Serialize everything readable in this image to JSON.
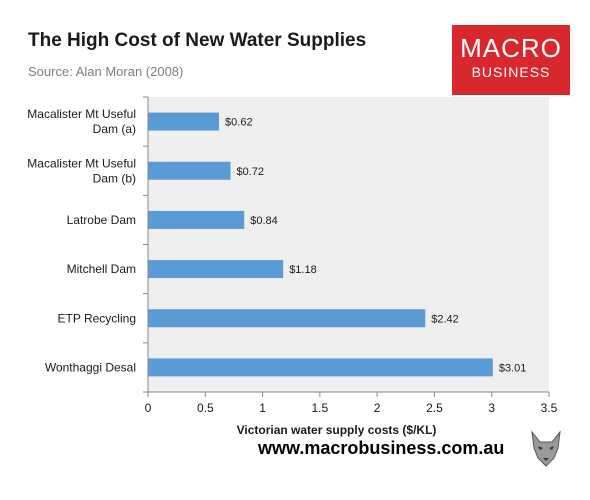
{
  "header": {
    "title": "The High Cost of New Water Supplies",
    "subtitle": "Source: Alan Moran (2008)"
  },
  "logo": {
    "line1": "MACRO",
    "line2": "BUSINESS",
    "color": "#d9272e"
  },
  "footer": {
    "url": "www.macrobusiness.com.au",
    "mascot_icon": "wolf-icon"
  },
  "chart_data": {
    "type": "bar",
    "orientation": "horizontal",
    "categories": [
      [
        "Macalister Mt Useful",
        "Dam (a)"
      ],
      [
        "Macalister Mt Useful",
        "Dam (b)"
      ],
      [
        "Latrobe Dam"
      ],
      [
        "Mitchell Dam"
      ],
      [
        "ETP Recycling"
      ],
      [
        "Wonthaggi Desal"
      ]
    ],
    "values": [
      0.62,
      0.72,
      0.84,
      1.18,
      2.42,
      3.01
    ],
    "data_labels": [
      "$0.62",
      "$0.72",
      "$0.84",
      "$1.18",
      "$2.42",
      "$3.01"
    ],
    "xlabel": "Victorian water supply costs ($/KL)",
    "xlim": [
      0,
      3.5
    ],
    "xticks": [
      0,
      0.5,
      1,
      1.5,
      2,
      2.5,
      3,
      3.5
    ],
    "xtick_labels": [
      "0",
      "0.5",
      "1",
      "1.5",
      "2",
      "2.5",
      "3",
      "3.5"
    ],
    "grid": false,
    "bar_color": "#5b9bd5",
    "plot_background": "#efefef"
  }
}
